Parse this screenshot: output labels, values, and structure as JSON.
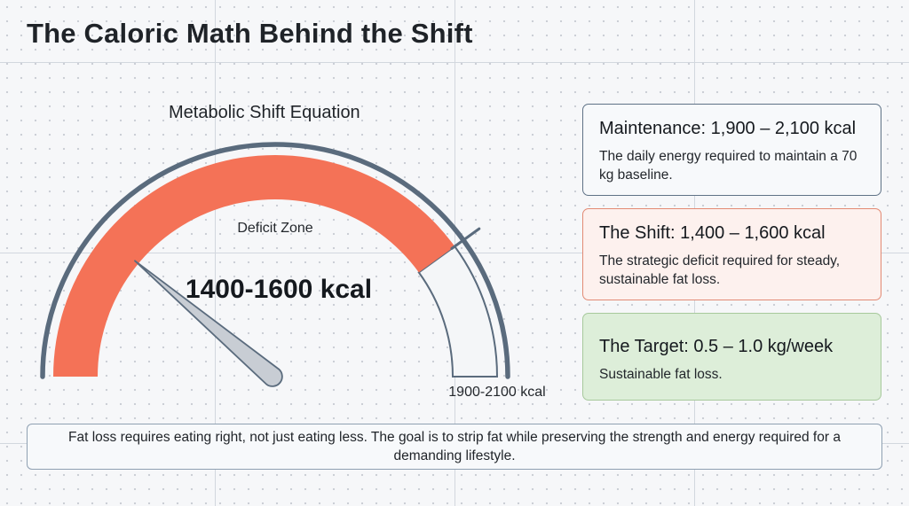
{
  "page": {
    "title": "The Caloric Math Behind the Shift"
  },
  "gauge": {
    "title": "Metabolic Shift Equation",
    "zone_label": "Deficit Zone",
    "reading_label": "1400-1600 kcal",
    "max_label": "1900-2100 kcal",
    "deficit_fraction": 0.8,
    "needle_fraction": 0.22,
    "colors": {
      "deficit": "#f47257",
      "outline": "#5a6b7d",
      "needle": "#c8cdd4"
    }
  },
  "cards": [
    {
      "heading": "Maintenance: 1,900 – 2,100 kcal",
      "body": "The daily energy required to maintain a 70 kg baseline."
    },
    {
      "heading": "The Shift: 1,400 – 1,600 kcal",
      "body": "The strategic deficit required for steady, sustainable fat loss."
    },
    {
      "heading": "The Target: 0.5 – 1.0 kg/week",
      "body": "Sustainable fat loss."
    }
  ],
  "footer": {
    "text": "Fat loss requires eating right, not just eating less. The goal is to strip fat while preserving the strength and energy required for a demanding lifestyle."
  }
}
